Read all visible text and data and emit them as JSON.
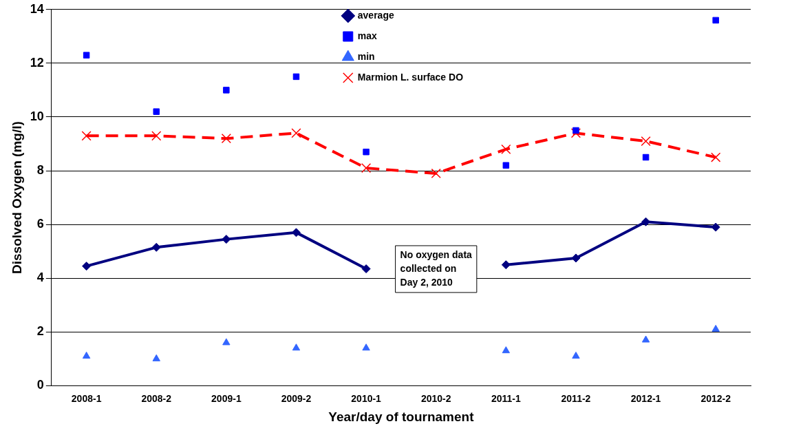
{
  "chart_data": {
    "type": "line",
    "xlabel": "Year/day of tournament",
    "ylabel": "Dissolved Oxygen (mg/l)",
    "categories": [
      "2008-1",
      "2008-2",
      "2009-1",
      "2009-2",
      "2010-1",
      "2010-2",
      "2011-1",
      "2011-2",
      "2012-1",
      "2012-2"
    ],
    "series": [
      {
        "name": "average",
        "color": "#000080",
        "marker": "diamond",
        "line_style": "solid",
        "values": [
          4.45,
          5.15,
          5.45,
          5.7,
          4.35,
          null,
          4.5,
          4.75,
          6.1,
          5.9
        ]
      },
      {
        "name": "max",
        "type": "scatter",
        "color": "#0000ff",
        "marker": "square",
        "values": [
          12.3,
          10.2,
          11.0,
          11.5,
          8.7,
          null,
          8.2,
          9.5,
          8.5,
          13.6
        ]
      },
      {
        "name": "min",
        "type": "scatter",
        "color": "#3366ff",
        "marker": "triangle",
        "values": [
          1.1,
          1.0,
          1.6,
          1.4,
          1.4,
          null,
          1.3,
          1.1,
          1.7,
          2.1
        ]
      },
      {
        "name": "Marmion L. surface DO",
        "color": "#ff0000",
        "marker": "cross",
        "line_style": "dashed",
        "values": [
          9.3,
          9.3,
          9.2,
          9.4,
          8.1,
          7.9,
          8.8,
          9.4,
          9.1,
          8.5
        ]
      }
    ],
    "ylim": [
      0,
      14
    ],
    "yticks": [
      0,
      2,
      4,
      6,
      8,
      10,
      12,
      14
    ],
    "grid": "y",
    "legend": "top",
    "annotations": [
      "No oxygen data collected on Day 2, 2010"
    ]
  }
}
